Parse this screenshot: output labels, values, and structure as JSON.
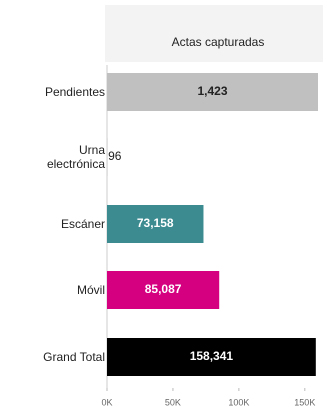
{
  "chart_data": {
    "type": "bar",
    "orientation": "horizontal",
    "title": "Actas capturadas",
    "categories": [
      "Pendientes",
      "Urna electrónica",
      "Escáner",
      "Móvil",
      "Grand Total"
    ],
    "values": [
      1423,
      96,
      73158,
      85087,
      158341
    ],
    "value_labels": [
      "1,423",
      "96",
      "73,158",
      "85,087",
      "158,341"
    ],
    "colors": [
      "#c0c0c0",
      "#c0c0c0",
      "#3b8b91",
      "#d4007f",
      "#000000"
    ],
    "xlim": [
      0,
      160000
    ],
    "xticks": [
      {
        "value": 0,
        "label": "0K"
      },
      {
        "value": 50000,
        "label": "50K"
      },
      {
        "value": 100000,
        "label": "100K"
      },
      {
        "value": 150000,
        "label": "150K"
      }
    ],
    "grid": false
  }
}
